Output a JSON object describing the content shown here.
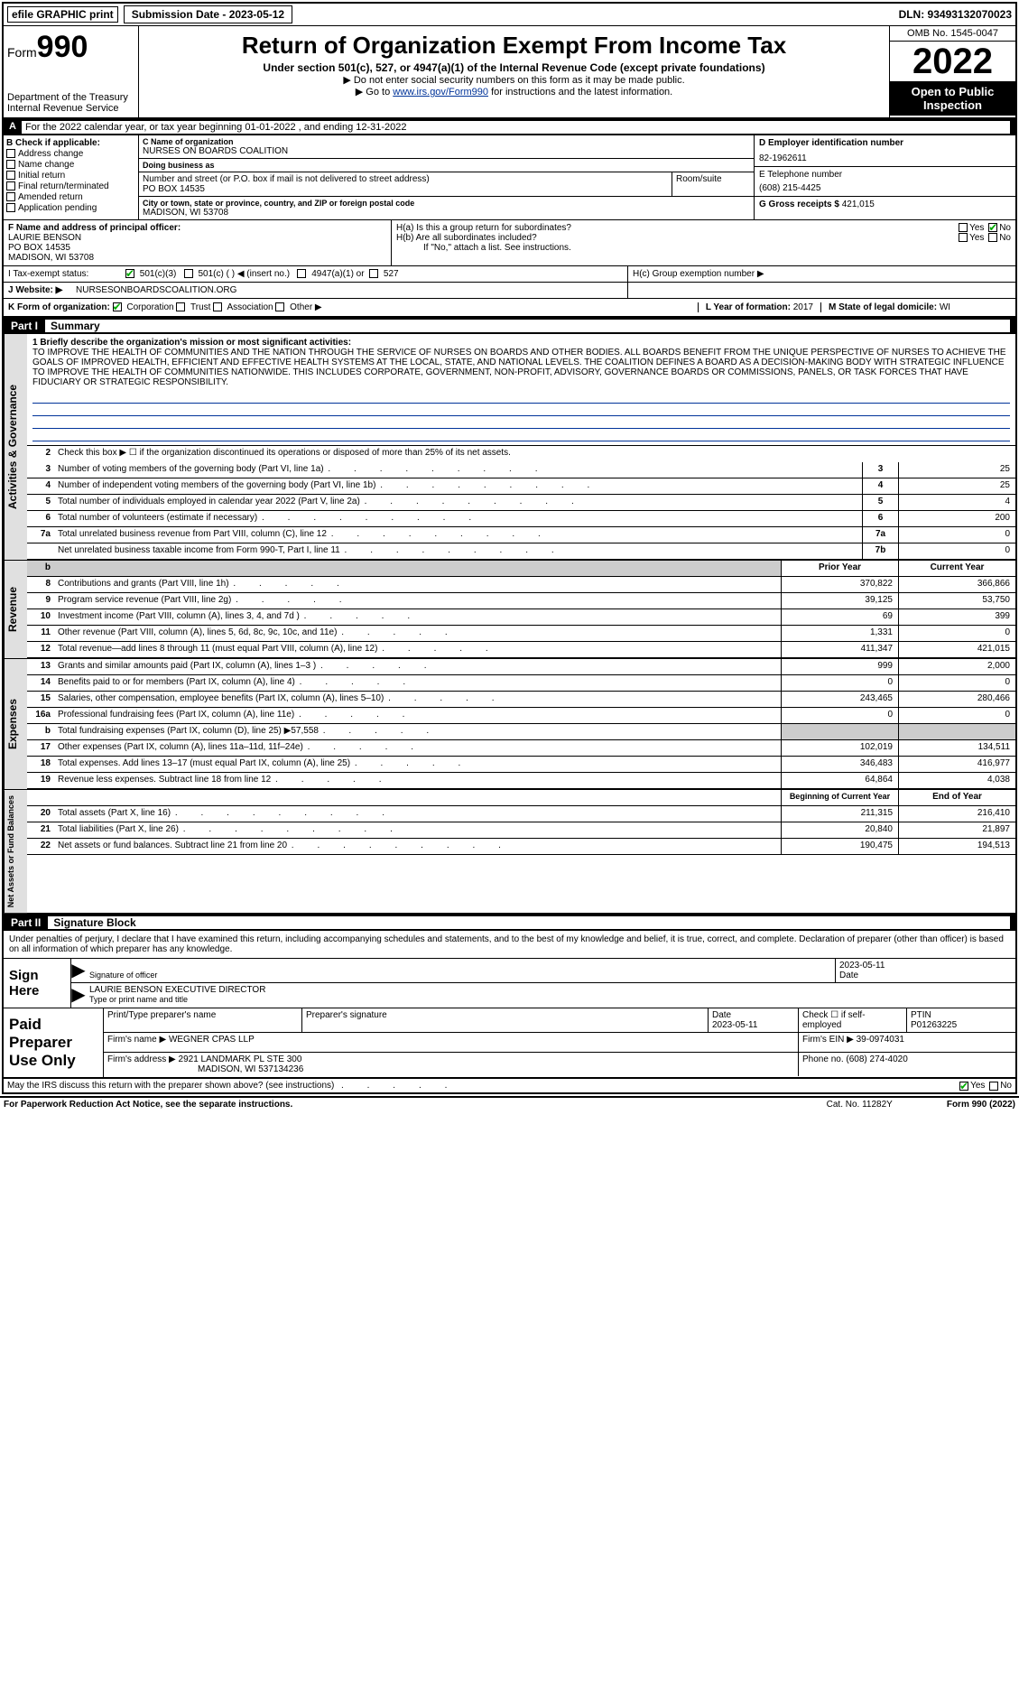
{
  "topbar": {
    "efile": "efile GRAPHIC print",
    "submit_label": "Submission Date - 2023-05-12",
    "dln": "DLN: 93493132070023"
  },
  "header": {
    "form_prefix": "Form",
    "form_num": "990",
    "dept": "Department of the Treasury",
    "irs": "Internal Revenue Service",
    "title": "Return of Organization Exempt From Income Tax",
    "subtitle": "Under section 501(c), 527, or 4947(a)(1) of the Internal Revenue Code (except private foundations)",
    "note1": "▶ Do not enter social security numbers on this form as it may be made public.",
    "note2_pre": "▶ Go to ",
    "note2_link": "www.irs.gov/Form990",
    "note2_post": " for instructions and the latest information.",
    "omb": "OMB No. 1545-0047",
    "year": "2022",
    "open": "Open to Public Inspection"
  },
  "rowA": "For the 2022 calendar year, or tax year beginning 01-01-2022   , and ending 12-31-2022",
  "boxB": {
    "title": "B Check if applicable:",
    "items": [
      "Address change",
      "Name change",
      "Initial return",
      "Final return/terminated",
      "Amended return",
      "Application pending"
    ]
  },
  "boxC": {
    "name_caption": "C Name of organization",
    "name": "NURSES ON BOARDS COALITION",
    "dba_caption": "Doing business as",
    "dba": "",
    "street_caption": "Number and street (or P.O. box if mail is not delivered to street address)",
    "street": "PO BOX 14535",
    "room_caption": "Room/suite",
    "city_caption": "City or town, state or province, country, and ZIP or foreign postal code",
    "city": "MADISON, WI  53708"
  },
  "boxD": {
    "caption": "D Employer identification number",
    "ein": "82-1962611"
  },
  "boxE": {
    "caption": "E Telephone number",
    "phone": "(608) 215-4425"
  },
  "boxG": {
    "caption": "G Gross receipts $",
    "val": "421,015"
  },
  "boxF": {
    "caption": "F  Name and address of principal officer:",
    "name": "LAURIE BENSON",
    "addr1": "PO BOX 14535",
    "addr2": "MADISON, WI  53708"
  },
  "boxH": {
    "h1a": "H(a)  Is this a group return for subordinates?",
    "h1b": "H(b)  Are all subordinates included?",
    "h1note": "If \"No,\" attach a list. See instructions.",
    "h1c": "H(c)  Group exemption number ▶"
  },
  "rowI": {
    "lab": "I   Tax-exempt status:",
    "opts": [
      "501(c)(3)",
      "501(c) (   ) ◀ (insert no.)",
      "4947(a)(1) or",
      "527"
    ]
  },
  "rowJ": {
    "lab": "J   Website: ▶",
    "val": "NURSESONBOARDSCOALITION.ORG"
  },
  "rowK": {
    "left": "K Form of organization:",
    "opts": [
      "Corporation",
      "Trust",
      "Association",
      "Other ▶"
    ],
    "mid_lab": "L Year of formation:",
    "mid_val": "2017",
    "right_lab": "M State of legal domicile:",
    "right_val": "WI"
  },
  "part1": {
    "label": "Part I",
    "title": "Summary"
  },
  "mission": {
    "intro": "1   Briefly describe the organization's mission or most significant activities:",
    "text": "TO IMPROVE THE HEALTH OF COMMUNITIES AND THE NATION THROUGH THE SERVICE OF NURSES ON BOARDS AND OTHER BODIES. ALL BOARDS BENEFIT FROM THE UNIQUE PERSPECTIVE OF NURSES TO ACHIEVE THE GOALS OF IMPROVED HEALTH, EFFICIENT AND EFFECTIVE HEALTH SYSTEMS AT THE LOCAL, STATE, AND NATIONAL LEVELS. THE COALITION DEFINES A BOARD AS A DECISION-MAKING BODY WITH STRATEGIC INFLUENCE TO IMPROVE THE HEALTH OF COMMUNITIES NATIONWIDE. THIS INCLUDES CORPORATE, GOVERNMENT, NON-PROFIT, ADVISORY, GOVERNANCE BOARDS OR COMMISSIONS, PANELS, OR TASK FORCES THAT HAVE FIDUCIARY OR STRATEGIC RESPONSIBILITY."
  },
  "gov": {
    "line2": "Check this box ▶ ☐ if the organization discontinued its operations or disposed of more than 25% of its net assets.",
    "rows": [
      {
        "n": "3",
        "d": "Number of voting members of the governing body (Part VI, line 1a)",
        "box": "3",
        "v": "25"
      },
      {
        "n": "4",
        "d": "Number of independent voting members of the governing body (Part VI, line 1b)",
        "box": "4",
        "v": "25"
      },
      {
        "n": "5",
        "d": "Total number of individuals employed in calendar year 2022 (Part V, line 2a)",
        "box": "5",
        "v": "4"
      },
      {
        "n": "6",
        "d": "Total number of volunteers (estimate if necessary)",
        "box": "6",
        "v": "200"
      },
      {
        "n": "7a",
        "d": "Total unrelated business revenue from Part VIII, column (C), line 12",
        "box": "7a",
        "v": "0"
      },
      {
        "n": "",
        "d": "Net unrelated business taxable income from Form 990-T, Part I, line 11",
        "box": "7b",
        "v": "0"
      }
    ]
  },
  "revenue": {
    "header_prior": "Prior Year",
    "header_cur": "Current Year",
    "rows": [
      {
        "n": "8",
        "d": "Contributions and grants (Part VIII, line 1h)",
        "p": "370,822",
        "v": "366,866"
      },
      {
        "n": "9",
        "d": "Program service revenue (Part VIII, line 2g)",
        "p": "39,125",
        "v": "53,750"
      },
      {
        "n": "10",
        "d": "Investment income (Part VIII, column (A), lines 3, 4, and 7d )",
        "p": "69",
        "v": "399"
      },
      {
        "n": "11",
        "d": "Other revenue (Part VIII, column (A), lines 5, 6d, 8c, 9c, 10c, and 11e)",
        "p": "1,331",
        "v": "0"
      },
      {
        "n": "12",
        "d": "Total revenue—add lines 8 through 11 (must equal Part VIII, column (A), line 12)",
        "p": "411,347",
        "v": "421,015"
      }
    ]
  },
  "expenses": {
    "rows": [
      {
        "n": "13",
        "d": "Grants and similar amounts paid (Part IX, column (A), lines 1–3 )",
        "p": "999",
        "v": "2,000"
      },
      {
        "n": "14",
        "d": "Benefits paid to or for members (Part IX, column (A), line 4)",
        "p": "0",
        "v": "0"
      },
      {
        "n": "15",
        "d": "Salaries, other compensation, employee benefits (Part IX, column (A), lines 5–10)",
        "p": "243,465",
        "v": "280,466"
      },
      {
        "n": "16a",
        "d": "Professional fundraising fees (Part IX, column (A), line 11e)",
        "p": "0",
        "v": "0"
      },
      {
        "n": "b",
        "d": "Total fundraising expenses (Part IX, column (D), line 25) ▶57,558",
        "p": "shade",
        "v": "shade"
      },
      {
        "n": "17",
        "d": "Other expenses (Part IX, column (A), lines 11a–11d, 11f–24e)",
        "p": "102,019",
        "v": "134,511"
      },
      {
        "n": "18",
        "d": "Total expenses. Add lines 13–17 (must equal Part IX, column (A), line 25)",
        "p": "346,483",
        "v": "416,977"
      },
      {
        "n": "19",
        "d": "Revenue less expenses. Subtract line 18 from line 12",
        "p": "64,864",
        "v": "4,038"
      }
    ]
  },
  "netassets": {
    "header_prior": "Beginning of Current Year",
    "header_cur": "End of Year",
    "rows": [
      {
        "n": "20",
        "d": "Total assets (Part X, line 16)",
        "p": "211,315",
        "v": "216,410"
      },
      {
        "n": "21",
        "d": "Total liabilities (Part X, line 26)",
        "p": "20,840",
        "v": "21,897"
      },
      {
        "n": "22",
        "d": "Net assets or fund balances. Subtract line 21 from line 20",
        "p": "190,475",
        "v": "194,513"
      }
    ]
  },
  "part2": {
    "label": "Part II",
    "title": "Signature Block"
  },
  "sig": {
    "decl": "Under penalties of perjury, I declare that I have examined this return, including accompanying schedules and statements, and to the best of my knowledge and belief, it is true, correct, and complete. Declaration of preparer (other than officer) is based on all information of which preparer has any knowledge.",
    "sign_here": "Sign Here",
    "sig_cap": "Signature of officer",
    "date": "2023-05-11",
    "date_cap": "Date",
    "name": "LAURIE BENSON  EXECUTIVE DIRECTOR",
    "name_cap": "Type or print name and title"
  },
  "paid": {
    "label": "Paid Preparer Use Only",
    "r1": {
      "c1_cap": "Print/Type preparer's name",
      "c2_cap": "Preparer's signature",
      "c3_cap": "Date",
      "c3": "2023-05-11",
      "c4": "Check ☐ if self-employed",
      "c5_cap": "PTIN",
      "c5": "P01263225"
    },
    "r2": {
      "lab": "Firm's name      ▶",
      "val": "WEGNER CPAS LLP",
      "ein_lab": "Firm's EIN ▶",
      "ein": "39-0974031"
    },
    "r3": {
      "lab": "Firm's address ▶",
      "val": "2921 LANDMARK PL STE 300",
      "phone_lab": "Phone no.",
      "phone": "(608) 274-4020"
    },
    "r3b": "MADISON, WI  537134236"
  },
  "footer": {
    "discuss": "May the IRS discuss this return with the preparer shown above? (see instructions)",
    "yes": "Yes",
    "no": "No",
    "paperwork": "For Paperwork Reduction Act Notice, see the separate instructions.",
    "cat": "Cat. No. 11282Y",
    "form": "Form 990 (2022)"
  },
  "vtabs": {
    "gov": "Activities & Governance",
    "rev": "Revenue",
    "exp": "Expenses",
    "net": "Net Assets or Fund Balances"
  }
}
